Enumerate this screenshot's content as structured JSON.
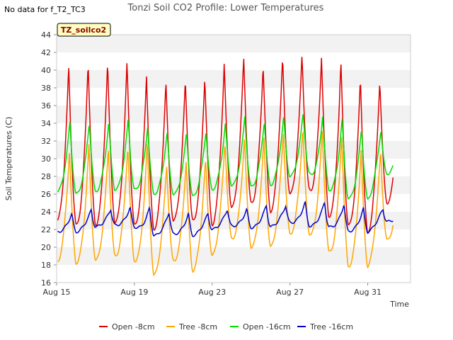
{
  "header": {
    "no_data_note": "No data for f_T2_TC3",
    "site_badge": "TZ_soilco2"
  },
  "chart_data": {
    "type": "line",
    "title": "Tonzi Soil CO2 Profile: Lower Temperatures",
    "xlabel": "Time",
    "ylabel": "Soil Temperatures (C)",
    "ylim": [
      16,
      44
    ],
    "yticks": [
      16,
      18,
      20,
      22,
      24,
      26,
      28,
      30,
      32,
      34,
      36,
      38,
      40,
      42,
      44
    ],
    "xlim_days": [
      15,
      33.2
    ],
    "xticks": [
      {
        "label": "Aug 15",
        "day": 15
      },
      {
        "label": "Aug 19",
        "day": 19
      },
      {
        "label": "Aug 23",
        "day": 23
      },
      {
        "label": "Aug 27",
        "day": 27
      },
      {
        "label": "Aug 31",
        "day": 31
      }
    ],
    "legend_position": "bottom",
    "grid": "horizontal bands",
    "series": [
      {
        "name": "Open -8cm",
        "color": "#dd0000",
        "daily_min": [
          23.0,
          22.5,
          22.5,
          22.8,
          22.5,
          22.0,
          23.0,
          23.0,
          22.5,
          24.5,
          25.0,
          24.0,
          26.0,
          26.5,
          23.5,
          22.5,
          21.5,
          25.0
        ],
        "daily_max": [
          40.5,
          41.0,
          41.0,
          41.0,
          39.5,
          38.8,
          39.0,
          39.3,
          40.8,
          41.5,
          40.7,
          41.5,
          41.8,
          41.5,
          41.0,
          39.2,
          38.9,
          38.9
        ]
      },
      {
        "name": "Tree -8cm",
        "color": "#ffa500",
        "daily_min": [
          18.3,
          18.2,
          18.5,
          19.0,
          18.5,
          16.8,
          18.5,
          17.3,
          19.0,
          21.0,
          20.0,
          20.0,
          21.5,
          21.5,
          19.5,
          17.8,
          17.8,
          20.8
        ],
        "daily_max": [
          31.0,
          31.5,
          31.3,
          31.5,
          32.0,
          29.3,
          29.8,
          30.0,
          32.0,
          32.5,
          32.3,
          33.2,
          33.5,
          33.5,
          32.8,
          31.0,
          30.8,
          30.8
        ]
      },
      {
        "name": "Open -16cm",
        "color": "#00dd00",
        "daily_min": [
          26.3,
          26.0,
          26.3,
          26.5,
          26.5,
          26.0,
          26.0,
          25.7,
          26.5,
          27.0,
          26.8,
          27.0,
          28.0,
          28.3,
          26.5,
          25.5,
          25.3,
          28.3
        ],
        "daily_max": [
          34.2,
          34.2,
          34.2,
          34.5,
          33.7,
          33.0,
          33.0,
          33.2,
          34.0,
          34.8,
          34.3,
          34.8,
          35.2,
          34.9,
          34.5,
          33.5,
          33.3,
          33.3
        ]
      },
      {
        "name": "Tree -16cm",
        "color": "#0000cc",
        "daily_min": [
          21.7,
          21.7,
          22.3,
          22.5,
          22.3,
          21.3,
          21.5,
          21.3,
          22.0,
          22.4,
          22.2,
          22.3,
          22.8,
          22.4,
          22.3,
          21.8,
          21.7,
          22.9
        ],
        "daily_max": [
          23.8,
          24.2,
          24.3,
          24.5,
          24.5,
          24.0,
          23.8,
          23.8,
          24.3,
          24.3,
          24.7,
          24.7,
          25.1,
          25.1,
          24.9,
          24.4,
          24.3,
          24.3
        ]
      }
    ]
  }
}
